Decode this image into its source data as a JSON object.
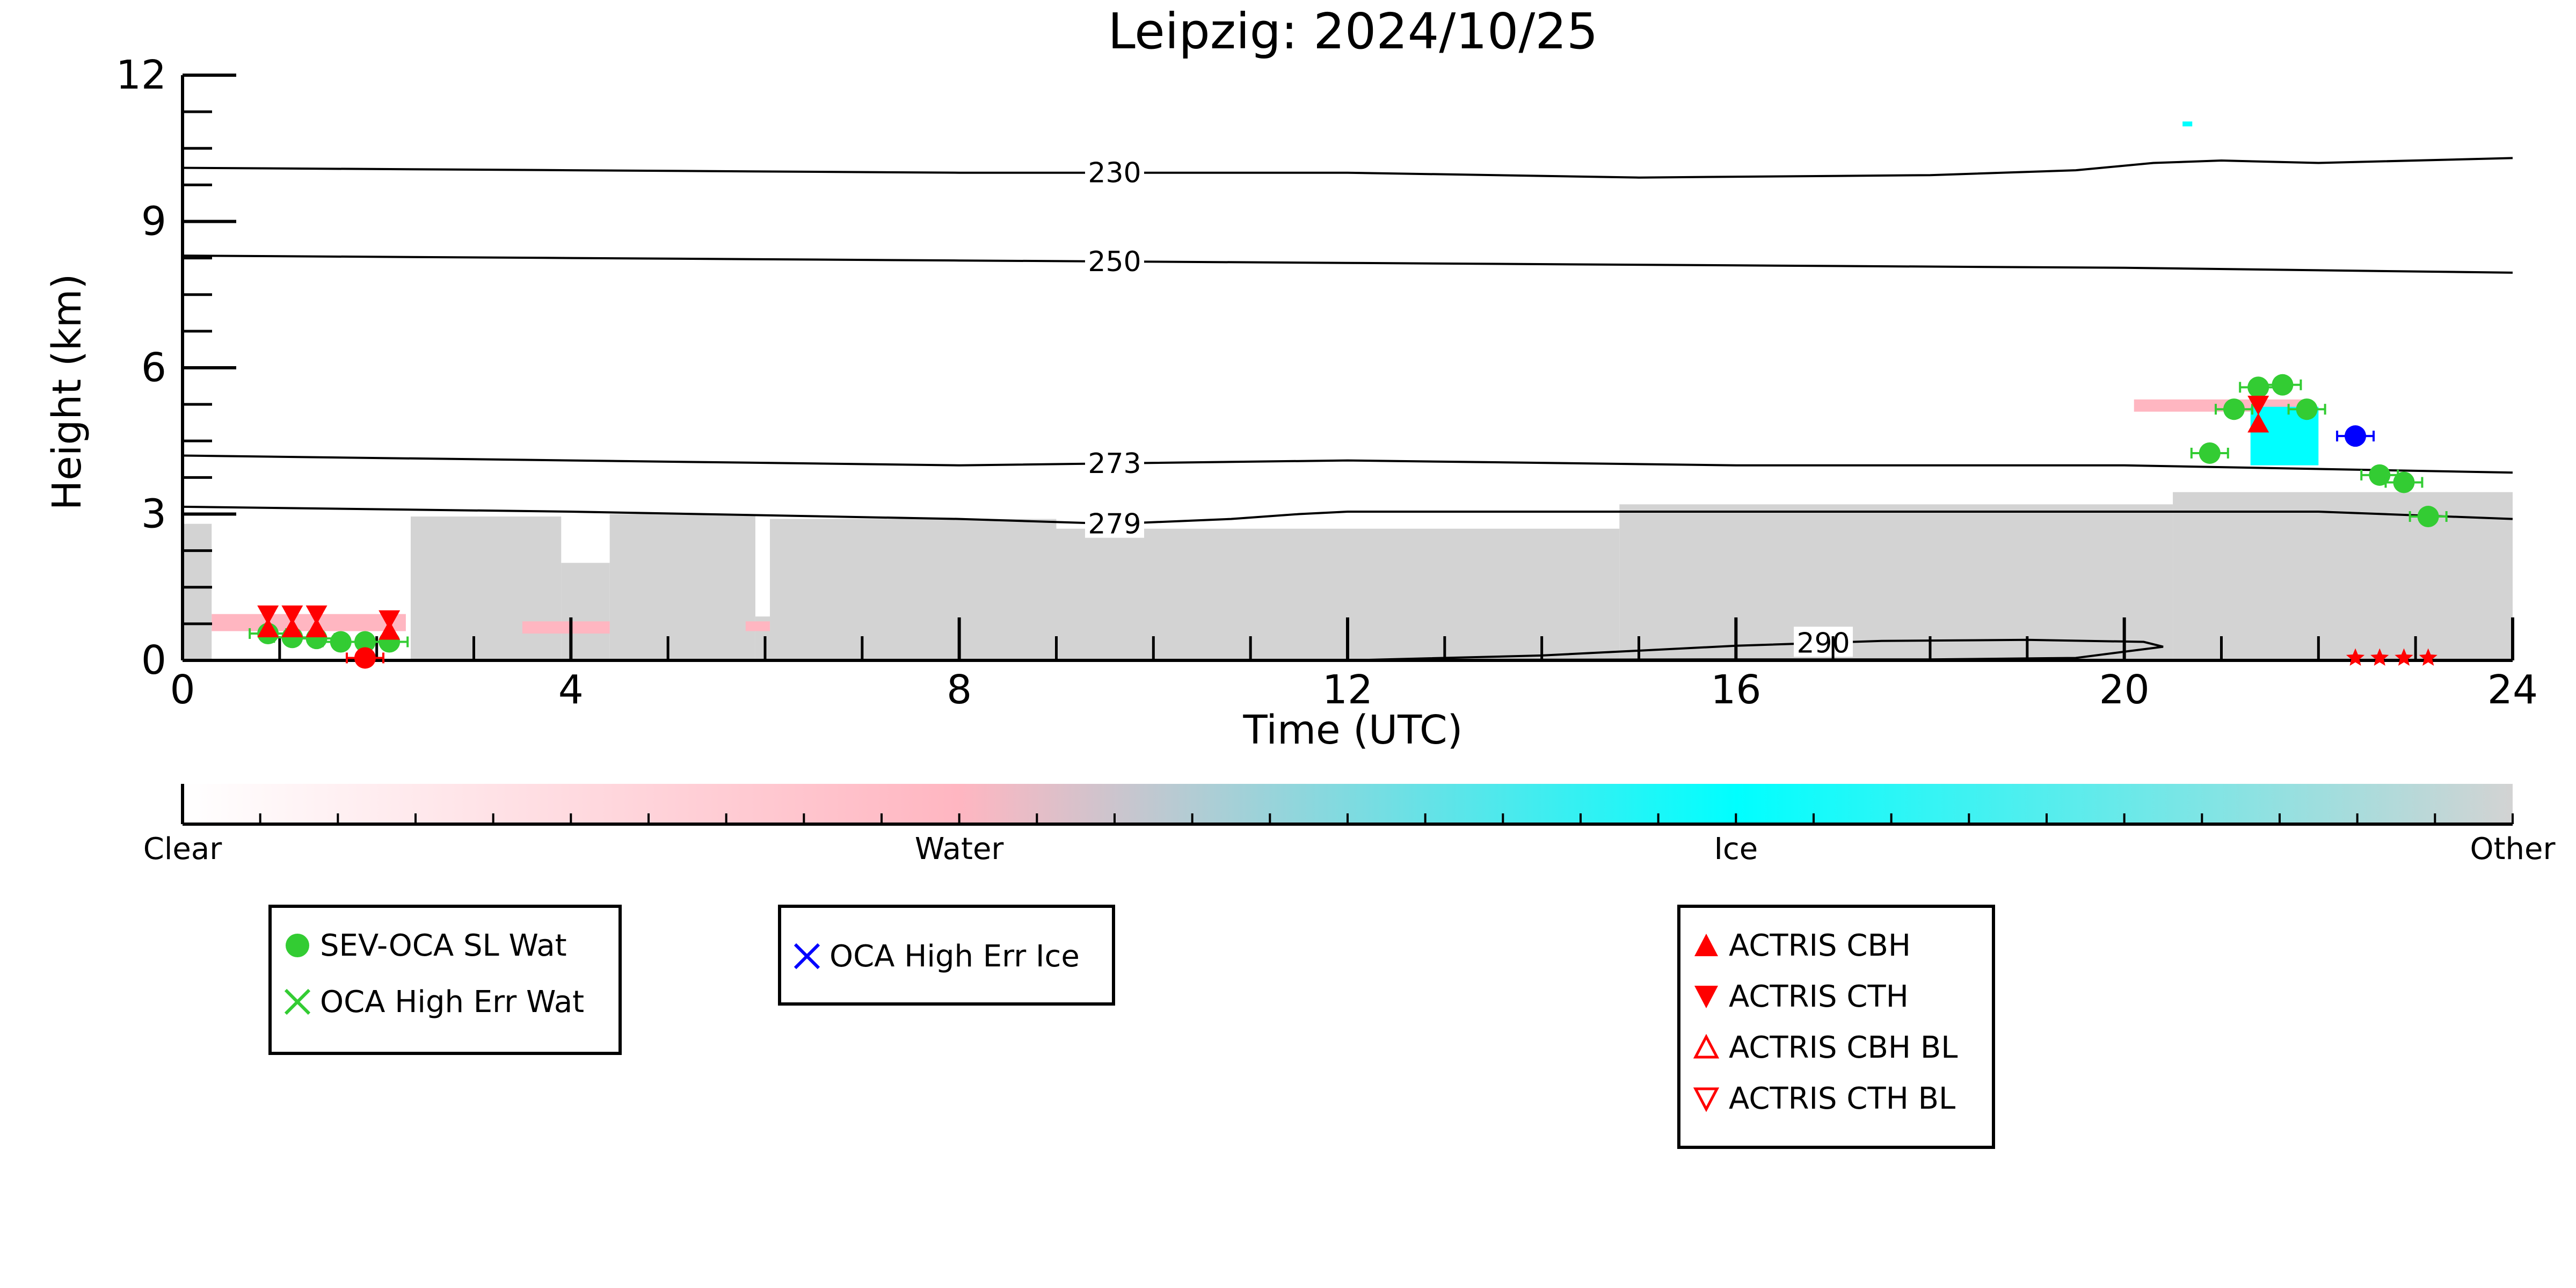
{
  "chart_data": {
    "type": "scatter",
    "title": "Leipzig: 2024/10/25",
    "xlabel": "Time (UTC)",
    "ylabel": "Height (km)",
    "xlim": [
      0,
      24
    ],
    "ylim": [
      0,
      12
    ],
    "x_ticks": [
      0,
      4,
      8,
      12,
      16,
      20,
      24
    ],
    "x_tick_labels": [
      "0",
      "4",
      "8",
      "12",
      "16",
      "20",
      "24"
    ],
    "y_ticks": [
      0,
      3,
      6,
      9,
      12
    ],
    "y_tick_labels": [
      "0",
      "3",
      "6",
      "9",
      "12"
    ],
    "classification": {
      "type": "heatmap",
      "colorbar_labels": [
        "Clear",
        "Water",
        "Ice",
        "Other"
      ],
      "colorbar_colors": [
        "#ffffff",
        "#ffb6c1",
        "#00ffff",
        "#d3d3d3"
      ],
      "other_regions": [
        {
          "x0": 0.0,
          "x1": 0.3,
          "top": 2.8
        },
        {
          "x0": 2.35,
          "x1": 3.9,
          "top": 2.95
        },
        {
          "x0": 3.9,
          "x1": 4.4,
          "top": 2.0
        },
        {
          "x0": 4.4,
          "x1": 5.9,
          "top": 3.0
        },
        {
          "x0": 5.9,
          "x1": 6.05,
          "top": 0.9
        },
        {
          "x0": 6.05,
          "x1": 9.0,
          "top": 2.9
        },
        {
          "x0": 9.0,
          "x1": 14.8,
          "top": 2.7
        },
        {
          "x0": 14.8,
          "x1": 20.5,
          "top": 3.2
        },
        {
          "x0": 20.5,
          "x1": 24.0,
          "top": 3.45
        }
      ],
      "water_regions": [
        {
          "x0": 0.3,
          "x1": 2.3,
          "y0": 0.6,
          "y1": 0.95
        },
        {
          "x0": 3.5,
          "x1": 4.4,
          "y0": 0.55,
          "y1": 0.8
        },
        {
          "x0": 5.8,
          "x1": 6.05,
          "y0": 0.6,
          "y1": 0.8
        },
        {
          "x0": 20.1,
          "x1": 21.9,
          "y0": 5.1,
          "y1": 5.35
        }
      ],
      "ice_regions": [
        {
          "x0": 21.3,
          "x1": 22.0,
          "y0": 4.0,
          "y1": 5.2
        },
        {
          "x0": 20.6,
          "x1": 20.7,
          "y0": 10.95,
          "y1": 11.05
        }
      ]
    },
    "temperature_contours": [
      {
        "label": "230",
        "label_x": 9.6,
        "x": [
          0,
          4,
          8,
          12,
          15,
          18,
          19.5,
          20.3,
          21,
          22,
          24
        ],
        "y": [
          10.1,
          10.05,
          10.0,
          10.0,
          9.9,
          9.95,
          10.05,
          10.2,
          10.25,
          10.2,
          10.3
        ]
      },
      {
        "label": "250",
        "label_x": 9.6,
        "x": [
          0,
          4,
          8,
          12,
          16,
          20,
          24
        ],
        "y": [
          8.3,
          8.25,
          8.2,
          8.15,
          8.1,
          8.05,
          7.95
        ]
      },
      {
        "label": "273",
        "label_x": 9.6,
        "x": [
          0,
          4,
          8,
          12,
          16,
          20,
          24
        ],
        "y": [
          4.2,
          4.1,
          4.0,
          4.1,
          4.0,
          4.0,
          3.85
        ]
      },
      {
        "label": "279",
        "label_x": 9.6,
        "x": [
          0,
          4,
          8,
          9.6,
          10.8,
          11.5,
          12,
          16,
          20,
          22,
          24
        ],
        "y": [
          3.15,
          3.05,
          2.9,
          2.8,
          2.9,
          3.0,
          3.05,
          3.05,
          3.05,
          3.05,
          2.9
        ]
      },
      {
        "label": "290",
        "label_x": 16.9,
        "x": [
          12.0,
          14.0,
          16.0,
          17.5,
          19.0,
          20.2,
          20.4,
          19.5,
          18.0,
          16.0,
          13.0,
          12.0
        ],
        "y": [
          0.0,
          0.1,
          0.3,
          0.4,
          0.42,
          0.38,
          0.28,
          0.05,
          0.02,
          0.02,
          0.01,
          0.0
        ]
      }
    ],
    "series": [
      {
        "name": "SEV-OCA SL Wat",
        "marker": "circle",
        "color": "#33cc33",
        "x": [
          0.88,
          1.13,
          1.38,
          1.63,
          1.88,
          2.13,
          20.88,
          21.13,
          21.38,
          21.63,
          21.88,
          22.63,
          22.88,
          23.13
        ],
        "y": [
          0.55,
          0.47,
          0.45,
          0.38,
          0.38,
          0.38,
          4.25,
          5.15,
          5.6,
          5.65,
          5.15,
          3.8,
          3.65,
          2.95
        ]
      },
      {
        "name": "OCA High Err Wat",
        "marker": "x",
        "color": "#33cc33",
        "x": [],
        "y": []
      },
      {
        "name": "OCA High Err Ice",
        "marker": "x",
        "color": "#0000ff",
        "x": [],
        "y": []
      },
      {
        "name": "ACTRIS CBH",
        "marker": "triangle-up",
        "color": "#ff0000",
        "x": [
          0.88,
          1.13,
          1.38,
          2.13,
          21.38
        ],
        "y": [
          0.65,
          0.65,
          0.65,
          0.6,
          4.85
        ]
      },
      {
        "name": "ACTRIS CTH",
        "marker": "triangle-down",
        "color": "#ff0000",
        "x": [
          0.88,
          1.13,
          1.38,
          2.13,
          21.38
        ],
        "y": [
          0.95,
          0.95,
          0.95,
          0.85,
          5.25
        ]
      },
      {
        "name": "ACTRIS CBH BL",
        "marker": "triangle-up-open",
        "color": "#ff0000",
        "x": [],
        "y": []
      },
      {
        "name": "ACTRIS CTH BL",
        "marker": "triangle-down-open",
        "color": "#ff0000",
        "x": [],
        "y": []
      }
    ],
    "unlabeled_points": [
      {
        "marker": "circle",
        "color": "#0000ff",
        "x": 22.38,
        "y": 4.6
      },
      {
        "marker": "circle",
        "color": "#ff0000",
        "x": 1.88,
        "y": 0.05
      },
      {
        "marker": "star",
        "color": "#ff0000",
        "x": 22.38,
        "y": 0.05
      },
      {
        "marker": "star",
        "color": "#ff0000",
        "x": 22.63,
        "y": 0.05
      },
      {
        "marker": "star",
        "color": "#ff0000",
        "x": 22.88,
        "y": 0.05
      },
      {
        "marker": "star",
        "color": "#ff0000",
        "x": 23.13,
        "y": 0.05
      }
    ],
    "legends": [
      [
        "SEV-OCA SL Wat",
        "OCA High Err Wat"
      ],
      [
        "OCA High Err Ice"
      ],
      [
        "ACTRIS CBH",
        "ACTRIS CTH",
        "ACTRIS CBH BL",
        "ACTRIS CTH BL"
      ]
    ],
    "grid": false
  }
}
